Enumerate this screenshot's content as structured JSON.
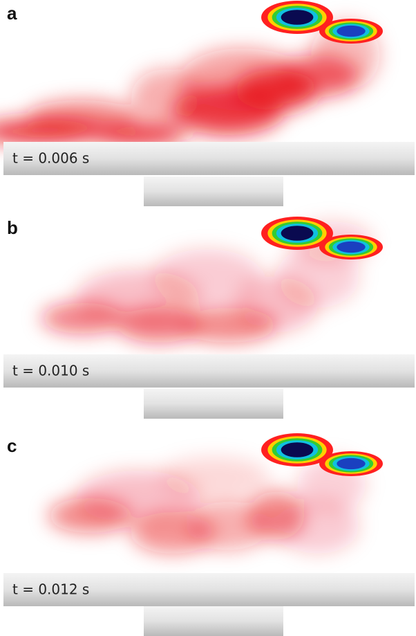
{
  "panels": [
    {
      "label": "a",
      "time": "t = 0.006 s"
    },
    {
      "label": "b",
      "time": "t = 0.010 s"
    },
    {
      "label": "c",
      "time": "t = 0.012 s"
    }
  ]
}
